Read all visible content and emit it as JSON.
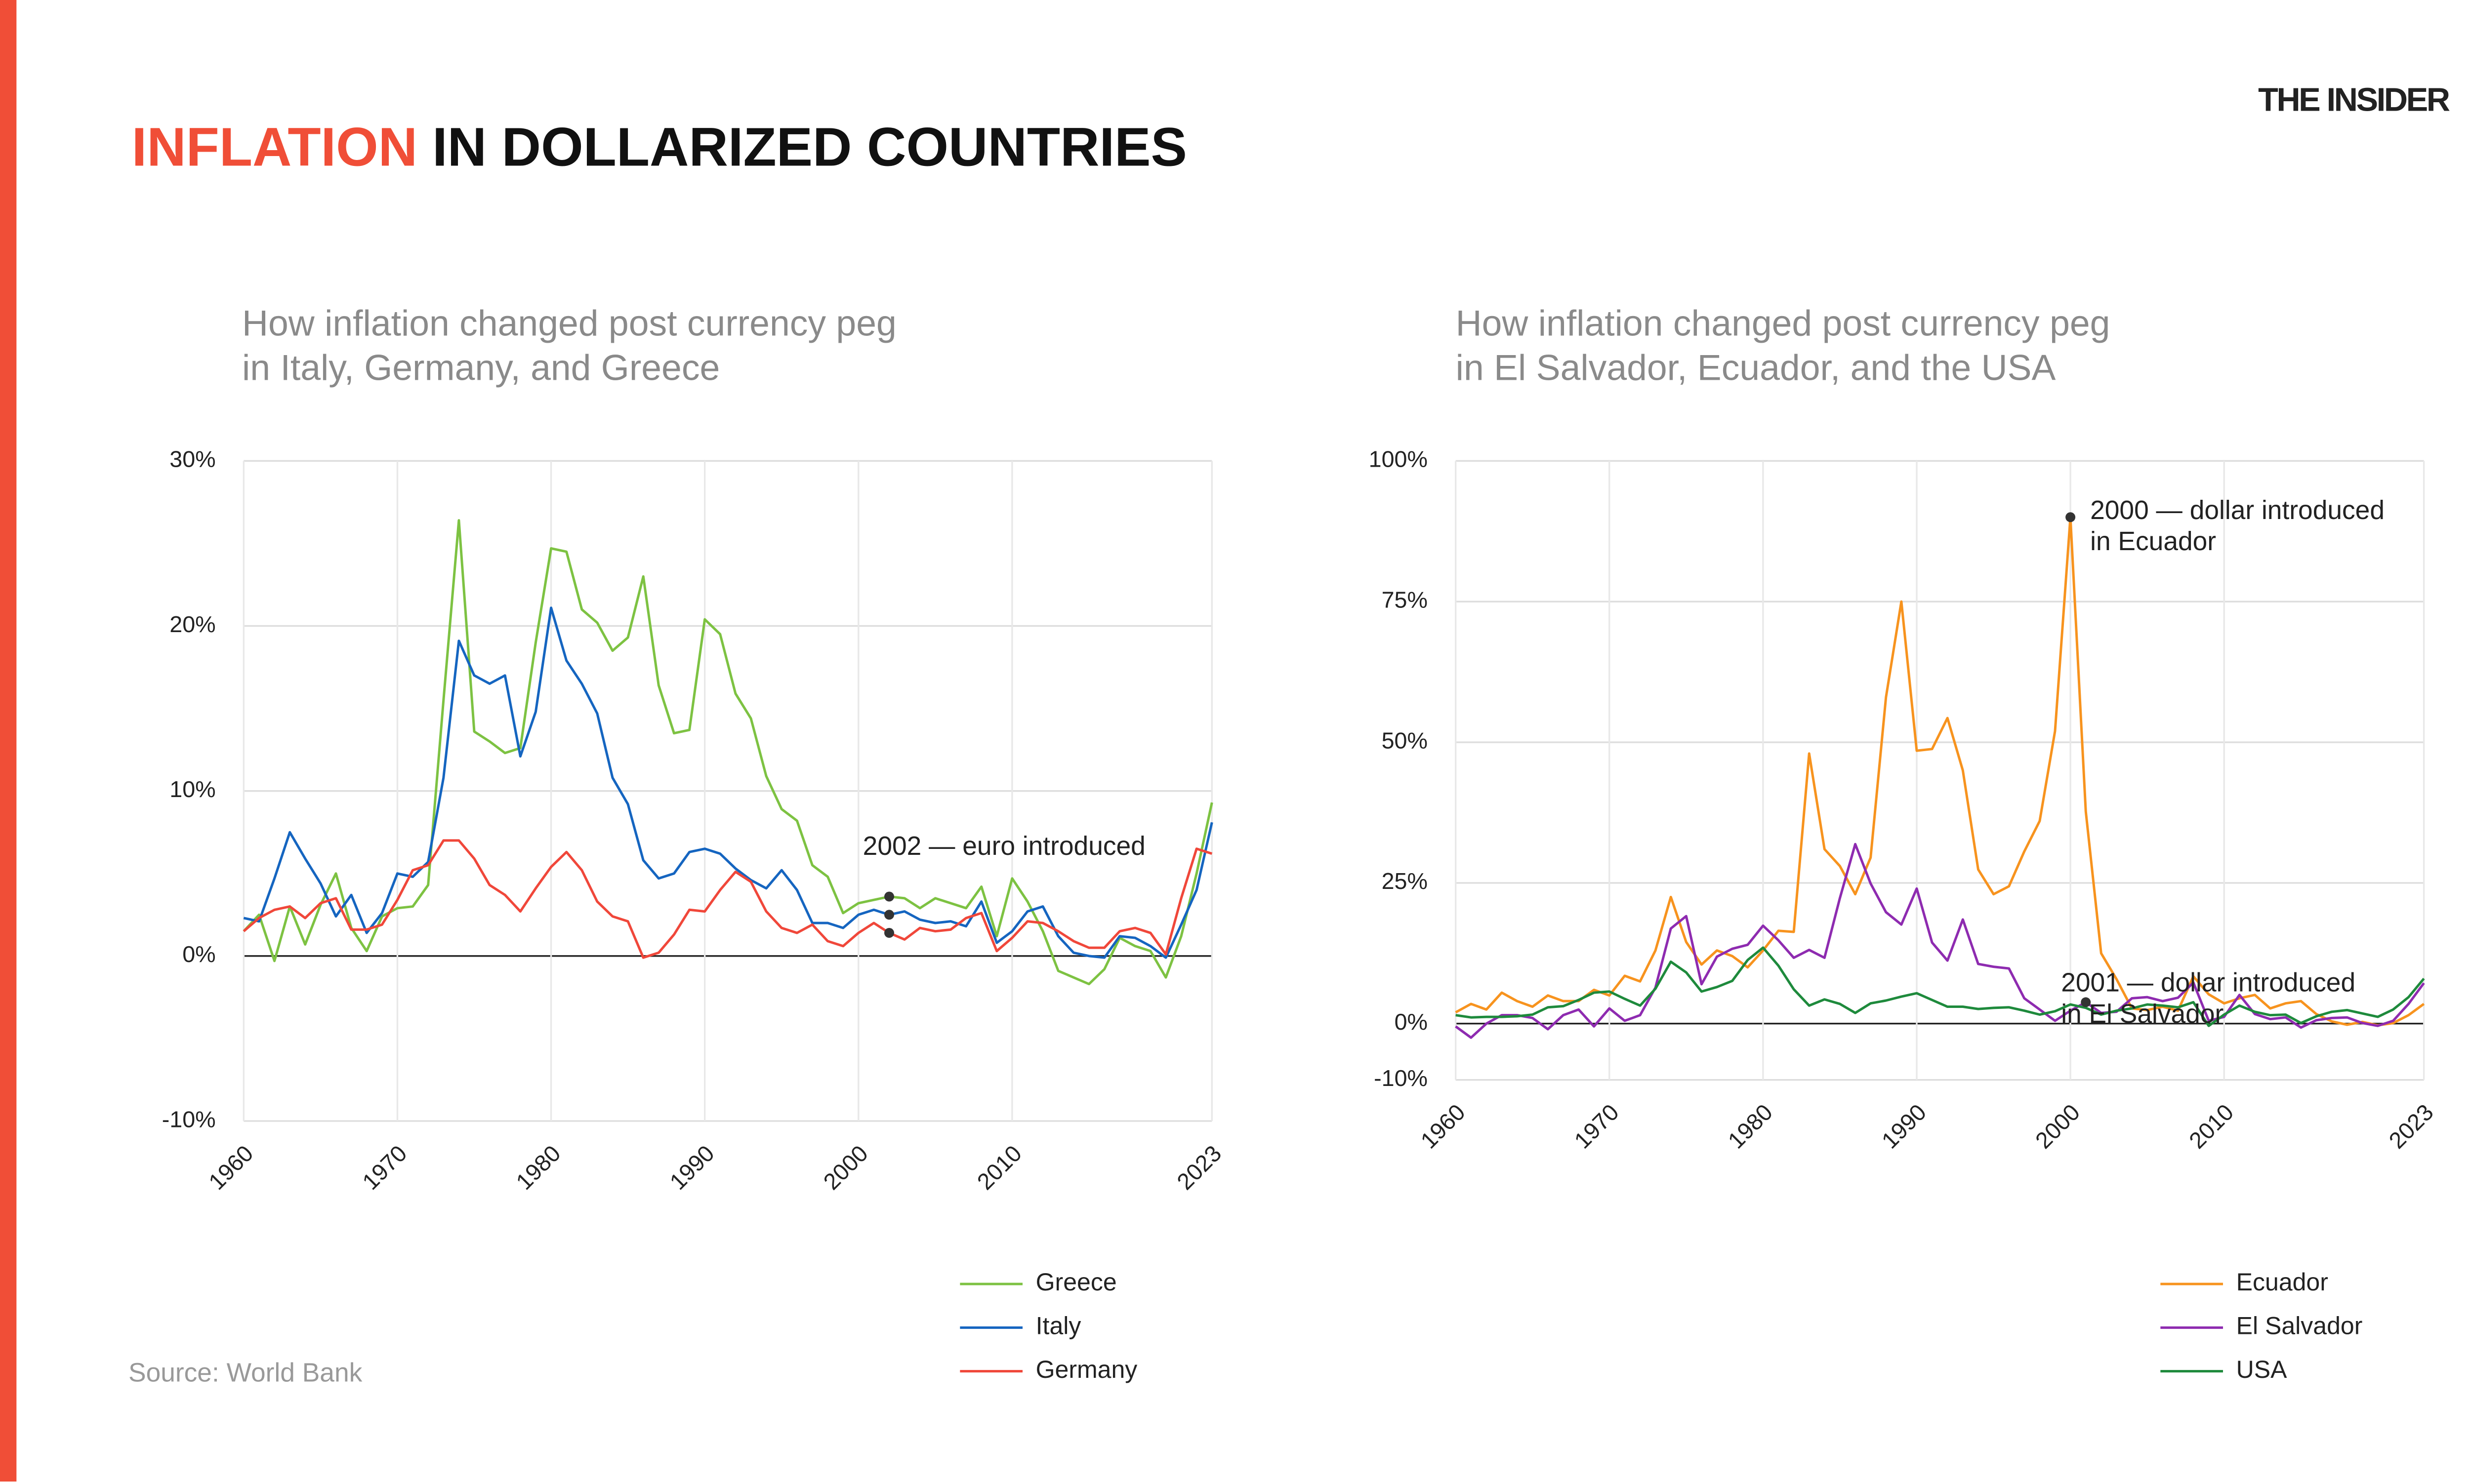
{
  "header": {
    "title_highlight": "INFLATION",
    "title_rest": "IN DOLLARIZED COUNTRIES",
    "brand": "THE INSIDER"
  },
  "source": "Source: World Bank",
  "chart_data": [
    {
      "type": "line",
      "subtitle": [
        "How inflation changed post currency peg",
        "in Italy, Germany, and Greece"
      ],
      "x": [
        1960,
        1961,
        1962,
        1963,
        1964,
        1965,
        1966,
        1967,
        1968,
        1969,
        1970,
        1971,
        1972,
        1973,
        1974,
        1975,
        1976,
        1977,
        1978,
        1979,
        1980,
        1981,
        1982,
        1983,
        1984,
        1985,
        1986,
        1987,
        1988,
        1989,
        1990,
        1991,
        1992,
        1993,
        1994,
        1995,
        1996,
        1997,
        1998,
        1999,
        2000,
        2001,
        2002,
        2003,
        2004,
        2005,
        2006,
        2007,
        2008,
        2009,
        2010,
        2011,
        2012,
        2013,
        2014,
        2015,
        2016,
        2017,
        2018,
        2019,
        2020,
        2021,
        2022,
        2023
      ],
      "xlim": [
        1960,
        2023
      ],
      "xticks": [
        1960,
        1970,
        1980,
        1990,
        2000,
        2010,
        2023
      ],
      "ylim": [
        -10,
        30
      ],
      "yticks": [
        {
          "value": -10,
          "label": "-10%"
        },
        {
          "value": 0,
          "label": "0%"
        },
        {
          "value": 10,
          "label": "10%"
        },
        {
          "value": 20,
          "label": "20%"
        },
        {
          "value": 30,
          "label": "30%"
        }
      ],
      "grid": true,
      "legend": "bottom right",
      "series": [
        {
          "name": "Greece",
          "color": "#7dc242",
          "values": [
            1.5,
            2.5,
            -0.3,
            3.0,
            0.7,
            3.1,
            5.0,
            1.7,
            0.3,
            2.4,
            2.9,
            3.0,
            4.3,
            15.5,
            26.4,
            13.6,
            13.0,
            12.3,
            12.6,
            19.0,
            24.7,
            24.5,
            21.0,
            20.2,
            18.5,
            19.3,
            23.0,
            16.4,
            13.5,
            13.7,
            20.4,
            19.5,
            15.9,
            14.4,
            10.9,
            8.9,
            8.2,
            5.5,
            4.8,
            2.6,
            3.2,
            3.4,
            3.6,
            3.5,
            2.9,
            3.5,
            3.2,
            2.9,
            4.2,
            1.2,
            4.7,
            3.3,
            1.5,
            -0.9,
            -1.3,
            -1.7,
            -0.8,
            1.1,
            0.6,
            0.3,
            -1.3,
            1.2,
            5.0,
            9.3
          ]
        },
        {
          "name": "Italy",
          "color": "#1565c0",
          "values": [
            2.3,
            2.1,
            4.7,
            7.5,
            5.9,
            4.4,
            2.4,
            3.7,
            1.4,
            2.6,
            5.0,
            4.8,
            5.7,
            10.8,
            19.1,
            17.0,
            16.5,
            17.0,
            12.1,
            14.8,
            21.1,
            17.9,
            16.5,
            14.7,
            10.8,
            9.2,
            5.8,
            4.7,
            5.0,
            6.3,
            6.5,
            6.2,
            5.3,
            4.6,
            4.1,
            5.2,
            4.0,
            2.0,
            2.0,
            1.7,
            2.5,
            2.8,
            2.5,
            2.7,
            2.2,
            2.0,
            2.1,
            1.8,
            3.3,
            0.8,
            1.5,
            2.7,
            3.0,
            1.2,
            0.2,
            0.0,
            -0.1,
            1.2,
            1.1,
            0.6,
            -0.1,
            1.9,
            4.0,
            8.1
          ]
        },
        {
          "name": "Germany",
          "color": "#f0473a",
          "values": [
            1.5,
            2.3,
            2.8,
            3.0,
            2.3,
            3.2,
            3.5,
            1.6,
            1.6,
            1.9,
            3.4,
            5.2,
            5.5,
            7.0,
            7.0,
            5.9,
            4.3,
            3.7,
            2.7,
            4.1,
            5.4,
            6.3,
            5.2,
            3.3,
            2.4,
            2.1,
            -0.1,
            0.2,
            1.3,
            2.8,
            2.7,
            4.0,
            5.1,
            4.5,
            2.7,
            1.7,
            1.4,
            1.9,
            0.9,
            0.6,
            1.4,
            2.0,
            1.4,
            1.0,
            1.7,
            1.5,
            1.6,
            2.3,
            2.6,
            0.3,
            1.1,
            2.1,
            2.0,
            1.5,
            0.9,
            0.5,
            0.5,
            1.5,
            1.7,
            1.4,
            0.1,
            3.5,
            6.5,
            6.2
          ]
        }
      ],
      "annotations": [
        {
          "text": [
            "2002 — euro introduced"
          ],
          "x": 2002,
          "series": [
            "Greece",
            "Italy",
            "Germany"
          ]
        }
      ]
    },
    {
      "type": "line",
      "subtitle": [
        "How inflation changed post currency peg",
        "in El Salvador, Ecuador, and the USA"
      ],
      "x": [
        1960,
        1961,
        1962,
        1963,
        1964,
        1965,
        1966,
        1967,
        1968,
        1969,
        1970,
        1971,
        1972,
        1973,
        1974,
        1975,
        1976,
        1977,
        1978,
        1979,
        1980,
        1981,
        1982,
        1983,
        1984,
        1985,
        1986,
        1987,
        1988,
        1989,
        1990,
        1991,
        1992,
        1993,
        1994,
        1995,
        1996,
        1997,
        1998,
        1999,
        2000,
        2001,
        2002,
        2003,
        2004,
        2005,
        2006,
        2007,
        2008,
        2009,
        2010,
        2011,
        2012,
        2013,
        2014,
        2015,
        2016,
        2017,
        2018,
        2019,
        2020,
        2021,
        2022,
        2023
      ],
      "xlim": [
        1960,
        2023
      ],
      "xticks": [
        1960,
        1970,
        1980,
        1990,
        2000,
        2010,
        2023
      ],
      "ylim": [
        -10,
        100
      ],
      "yticks": [
        {
          "value": -10,
          "label": "-10%"
        },
        {
          "value": 0,
          "label": "0%"
        },
        {
          "value": 25,
          "label": "25%"
        },
        {
          "value": 50,
          "label": "50%"
        },
        {
          "value": 75,
          "label": "75%"
        },
        {
          "value": 100,
          "label": "100%"
        }
      ],
      "grid": true,
      "legend": "bottom right",
      "series": [
        {
          "name": "Ecuador",
          "color": "#f7931e",
          "values": [
            2,
            3.5,
            2.5,
            5.5,
            4,
            3,
            5,
            4,
            4,
            6,
            5,
            8.5,
            7.5,
            13,
            22.5,
            14.5,
            10.5,
            13,
            12,
            10,
            13,
            16.5,
            16.3,
            48,
            31,
            28,
            23,
            29.5,
            58,
            75,
            48.5,
            48.8,
            54.3,
            45,
            27.4,
            23,
            24.4,
            30.6,
            36,
            52,
            90,
            37.7,
            12.5,
            7.9,
            2.7,
            2.4,
            3.0,
            2.3,
            8.4,
            5.2,
            3.6,
            4.5,
            5.1,
            2.7,
            3.6,
            4.0,
            1.7,
            0.4,
            -0.2,
            0.3,
            -0.3,
            0.1,
            1.5,
            3.5
          ]
        },
        {
          "name": "El Salvador",
          "color": "#8e2bb0",
          "values": [
            -0.5,
            -2.5,
            0,
            1.5,
            1.5,
            1,
            -1,
            1.5,
            2.5,
            -0.5,
            2.7,
            0.5,
            1.5,
            6.4,
            16.9,
            19.1,
            7,
            11.9,
            13.3,
            14,
            17.4,
            14.8,
            11.7,
            13.1,
            11.7,
            22.3,
            31.9,
            24.9,
            19.8,
            17.6,
            24,
            14.4,
            11.2,
            18.5,
            10.6,
            10.1,
            9.8,
            4.5,
            2.5,
            0.5,
            2.3,
            3.8,
            1.9,
            2.1,
            4.5,
            4.7,
            4.0,
            4.6,
            7.3,
            0.5,
            1.2,
            5.1,
            1.7,
            0.8,
            1.1,
            -0.7,
            0.6,
            1.0,
            1.1,
            0.1,
            -0.4,
            0.5,
            3.5,
            7.2
          ]
        },
        {
          "name": "USA",
          "color": "#1e8a3c",
          "values": [
            1.5,
            1.1,
            1.2,
            1.2,
            1.3,
            1.6,
            2.9,
            3.1,
            4.2,
            5.5,
            5.7,
            4.4,
            3.2,
            6.2,
            11.0,
            9.1,
            5.7,
            6.5,
            7.6,
            11.3,
            13.5,
            10.3,
            6.1,
            3.2,
            4.3,
            3.5,
            1.9,
            3.6,
            4.1,
            4.8,
            5.4,
            4.2,
            3.0,
            3.0,
            2.6,
            2.8,
            2.9,
            2.3,
            1.6,
            2.2,
            3.4,
            2.8,
            1.6,
            2.3,
            2.7,
            3.4,
            3.2,
            2.9,
            3.8,
            -0.4,
            1.6,
            3.2,
            2.1,
            1.5,
            1.6,
            0.1,
            1.3,
            2.1,
            2.4,
            1.8,
            1.2,
            2.5,
            4.7,
            8.0
          ]
        }
      ],
      "annotations": [
        {
          "text": [
            "2000 — dollar introduced",
            "in Ecuador"
          ],
          "x": 2000,
          "series": [
            "Ecuador"
          ]
        },
        {
          "text": [
            "2001 — dollar introduced",
            "in El Salvador"
          ],
          "x": 2001,
          "series": [
            "El Salvador"
          ]
        }
      ]
    }
  ]
}
